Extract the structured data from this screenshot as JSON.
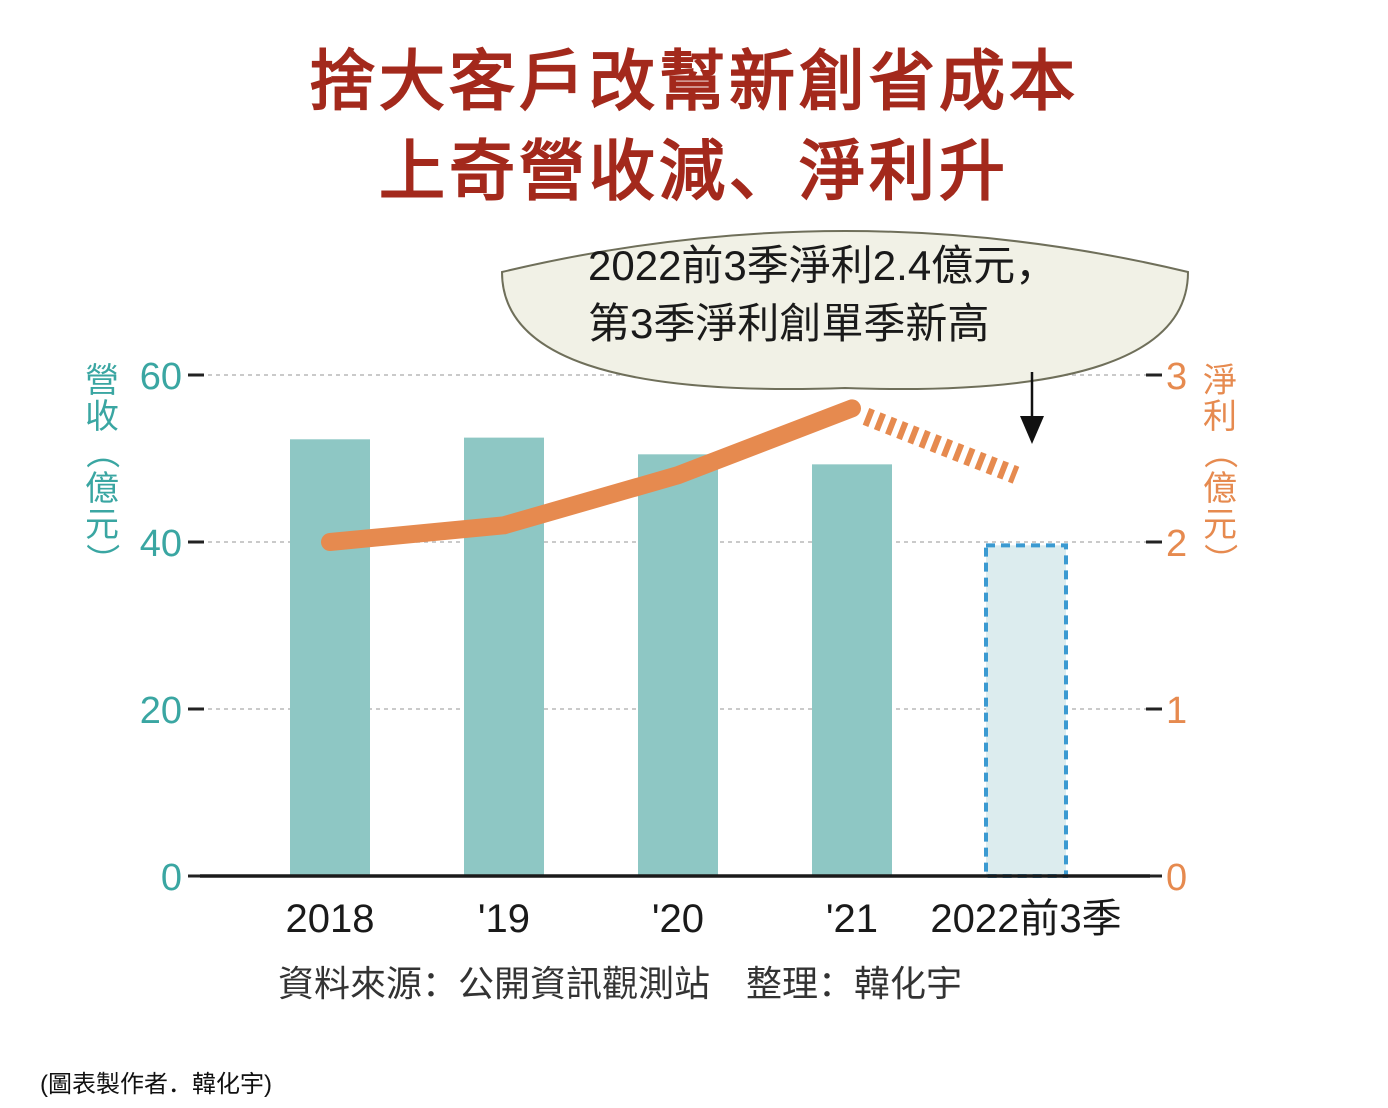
{
  "title_line1": "捨大客戶改幫新創省成本",
  "title_line2": "上奇營收減、淨利升",
  "callout": {
    "line1": "2022前3季淨利2.4億元，",
    "line2": "第3季淨利創單季新高"
  },
  "source_note": "資料來源：公開資訊觀測站　整理：韓化宇",
  "credit": "(圖表製作者．韓化宇)",
  "colors": {
    "title": "#a3291c",
    "bar": "#8ec7c4",
    "bar_estimate_fill": "#dcecee",
    "bar_estimate_border": "#3b9ad1",
    "line": "#e68a4f",
    "left_axis_text": "#3aa6a2",
    "right_axis_text": "#e68a4f",
    "callout_fill": "#f1f1e6"
  },
  "chart_data": {
    "type": "bar",
    "categories": [
      "2018",
      "'19",
      "'20",
      "'21",
      "2022前3季"
    ],
    "series": [
      {
        "name": "營收",
        "axis": "left",
        "kind": "bar",
        "values": [
          52.3,
          52.5,
          50.5,
          49.3,
          39.6
        ]
      },
      {
        "name": "淨利",
        "axis": "right",
        "kind": "line",
        "values": [
          2.0,
          2.1,
          2.4,
          2.8,
          2.4
        ]
      }
    ],
    "estimate_category": "2022前3季",
    "ylabel": "營收（億元）",
    "y2label": "淨利（億元）",
    "ylim": [
      0,
      60
    ],
    "y2lim": [
      0,
      3
    ],
    "yticks": [
      "0",
      "20",
      "40",
      "60"
    ],
    "y2ticks": [
      "0",
      "1",
      "2",
      "3"
    ],
    "grid": true
  }
}
